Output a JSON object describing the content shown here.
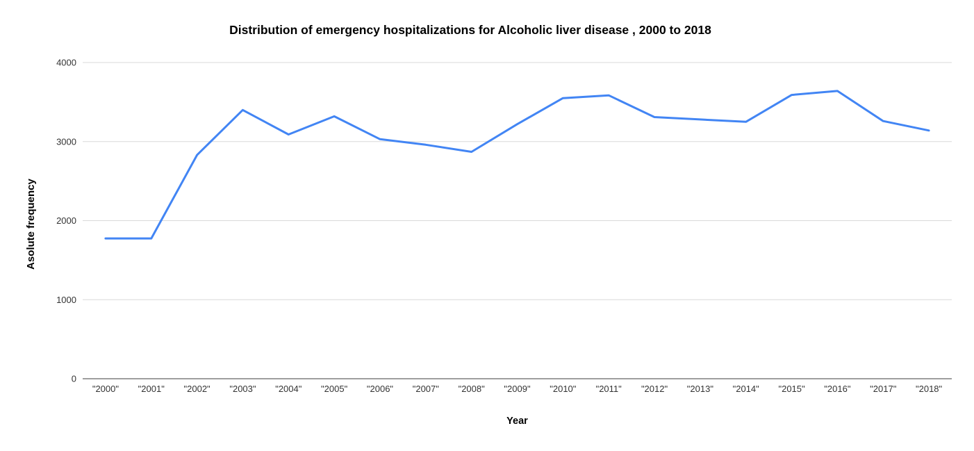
{
  "chart_data": {
    "type": "line",
    "title": "Distribution of emergency hospitalizations for Alcoholic liver disease , 2000 to 2018",
    "xlabel": "Year",
    "ylabel": "Asolute frequency",
    "categories": [
      "2000",
      "2001",
      "2002",
      "2003",
      "2004",
      "2005",
      "2006",
      "2007",
      "2008",
      "2009",
      "2010",
      "2011",
      "2012",
      "2013",
      "2014",
      "2015",
      "2016",
      "2017",
      "2018"
    ],
    "x_tick_labels": [
      "\"2000\"",
      "\"2001\"",
      "\"2002\"",
      "\"2003\"",
      "\"2004\"",
      "\"2005\"",
      "\"2006\"",
      "\"2007\"",
      "\"2008\"",
      "\"2009\"",
      "\"2010\"",
      "\"2011\"",
      "\"2012\"",
      "\"2013\"",
      "\"2014\"",
      "\"2015\"",
      "\"2016\"",
      "\"2017\"",
      "\"2018\""
    ],
    "values": [
      1775,
      1775,
      2830,
      3400,
      3090,
      3320,
      3030,
      2960,
      2870,
      3220,
      3550,
      3585,
      3310,
      3280,
      3250,
      3590,
      3640,
      3260,
      3140
    ],
    "ylim": [
      0,
      4000
    ],
    "y_ticks": [
      0,
      1000,
      2000,
      3000,
      4000
    ],
    "grid": true,
    "legend": "none",
    "colors": {
      "line": "#4285f4",
      "gridline": "#d9d9d9",
      "axis_line": "#9e9e9e",
      "tick_text": "#333333",
      "title_text": "#000000",
      "background": "#ffffff"
    }
  }
}
